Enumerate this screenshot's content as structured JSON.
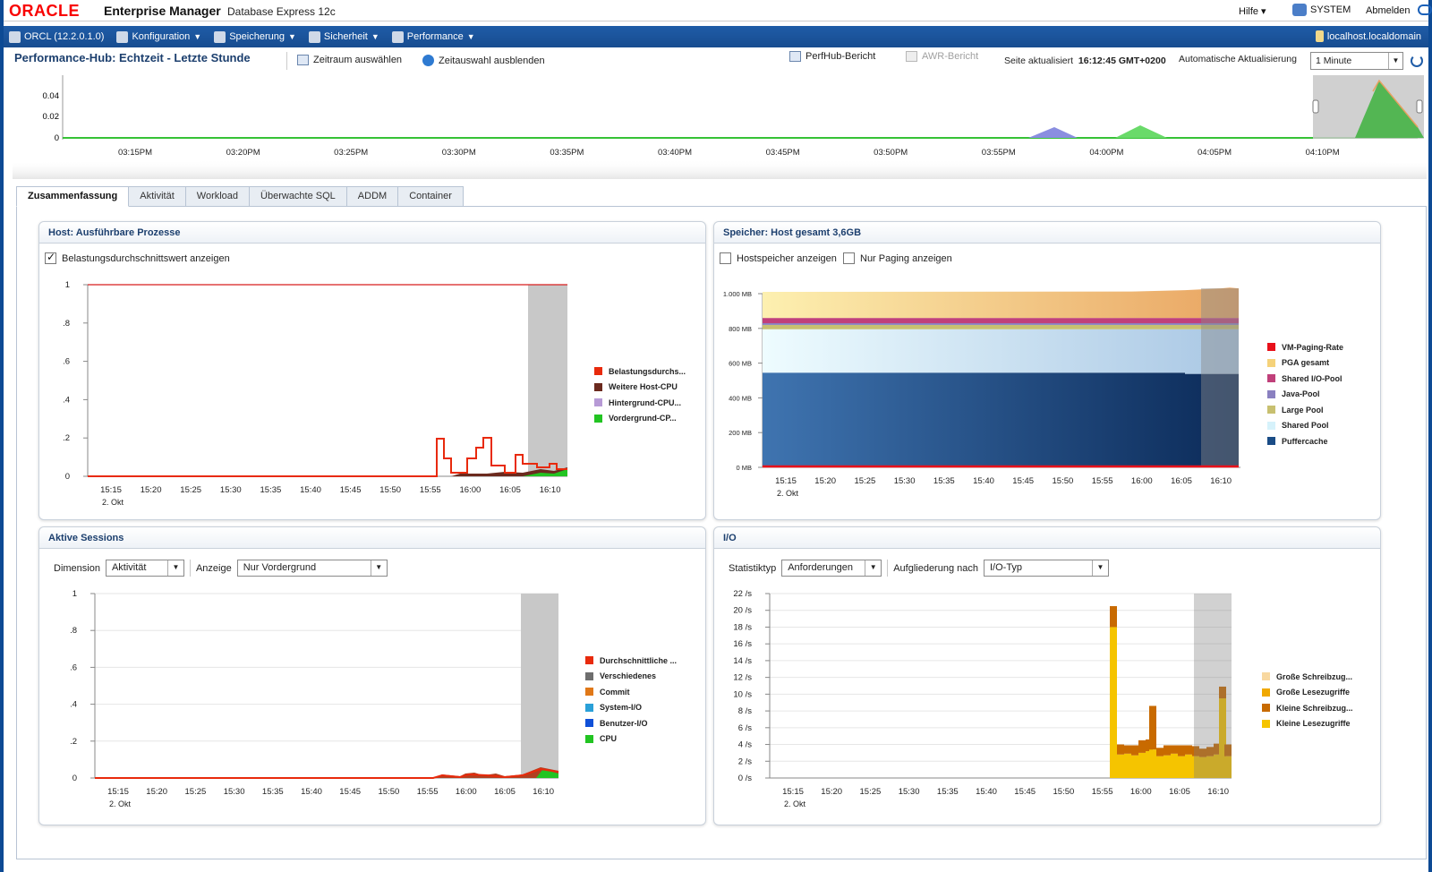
{
  "header": {
    "logo": "ORACLE",
    "product": "Enterprise Manager",
    "product_sub": "Database Express 12c",
    "help": "Hilfe ▾",
    "user": "SYSTEM",
    "logout": "Abmelden"
  },
  "nav": {
    "db": "ORCL (12.2.0.1.0)",
    "items": [
      "Konfiguration",
      "Speicherung",
      "Sicherheit",
      "Performance"
    ],
    "host": "localhost.localdomain"
  },
  "title_row": {
    "title": "Performance-Hub: Echtzeit - Letzte Stunde",
    "select_range": "Zeitraum auswählen",
    "hide_selection": "Zeitauswahl ausblenden",
    "perfhub_report": "PerfHub-Bericht",
    "awr_report": "AWR-Bericht",
    "updated_label": "Seite aktualisiert",
    "updated_time": "16:12:45 GMT+0200",
    "autorefresh_label": "Automatische Aktualisierung",
    "autorefresh_value": "1 Minute"
  },
  "overview": {
    "y_ticks": [
      "0.04",
      "0.02",
      "0"
    ],
    "x_ticks": [
      "03:15PM",
      "03:20PM",
      "03:25PM",
      "03:30PM",
      "03:35PM",
      "03:40PM",
      "03:45PM",
      "03:50PM",
      "03:55PM",
      "04:00PM",
      "04:05PM",
      "04:10PM"
    ]
  },
  "tabs": [
    "Zusammenfassung",
    "Aktivität",
    "Workload",
    "Überwachte SQL",
    "ADDM",
    "Container"
  ],
  "panels": {
    "host": {
      "title": "Host: Ausführbare Prozesse",
      "checkbox_label": "Belastungsdurchschnittswert anzeigen"
    },
    "memory": {
      "title": "Speicher: Host gesamt 3,6GB",
      "checkbox1": "Hostspeicher anzeigen",
      "checkbox2": "Nur Paging anzeigen"
    },
    "sessions": {
      "title": "Aktive Sessions",
      "dimension_label": "Dimension",
      "dimension_value": "Aktivität",
      "display_label": "Anzeige",
      "display_value": "Nur Vordergrund"
    },
    "io": {
      "title": "I/O",
      "stat_label": "Statistiktyp",
      "stat_value": "Anforderungen",
      "breakdown_label": "Aufgliederung nach",
      "breakdown_value": "I/O-Typ"
    }
  },
  "colors": {
    "load": "#e82a0c",
    "other_cpu": "#6b2a1e",
    "bg_cpu": "#b79ad6",
    "fg_cpu": "#22c422",
    "buffer_cache": "#1a4c86",
    "shared_pool": "#d6f2fb",
    "pga": "#f5d27a",
    "small_reads": "#f5c400",
    "small_writes": "#c86a00"
  },
  "chart_data": [
    {
      "type": "line",
      "title": "Host: Ausführbare Prozesse",
      "x": [
        "15:15",
        "15:20",
        "15:25",
        "15:30",
        "15:35",
        "15:40",
        "15:45",
        "15:50",
        "15:55",
        "16:00",
        "16:05",
        "16:10"
      ],
      "x_sublabel": "2. Okt",
      "y_ticks": [
        "1",
        ".8",
        ".6",
        ".4",
        ".2",
        "0"
      ],
      "ylim": [
        0,
        1
      ],
      "series": [
        {
          "name": "Belastungsdurchs...",
          "color": "#e82a0c",
          "values": [
            0,
            0,
            0,
            0,
            0,
            0,
            0,
            0,
            0.2,
            0.2,
            0.1,
            0.05
          ]
        },
        {
          "name": "Weitere Host-CPU",
          "color": "#6b2a1e",
          "values": [
            0,
            0,
            0,
            0,
            0,
            0,
            0,
            0,
            0.02,
            0.03,
            0.02,
            0.04
          ]
        },
        {
          "name": "Hintergrund-CPU...",
          "color": "#b79ad6",
          "values": [
            0,
            0,
            0,
            0,
            0,
            0,
            0,
            0,
            0.01,
            0.01,
            0.01,
            0.02
          ]
        },
        {
          "name": "Vordergrund-CP...",
          "color": "#22c422",
          "values": [
            0,
            0,
            0,
            0,
            0,
            0,
            0,
            0,
            0.01,
            0.01,
            0.01,
            0.03
          ]
        }
      ],
      "cpu_count_line": 1
    },
    {
      "type": "area",
      "title": "Speicher: Host gesamt 3,6GB",
      "x": [
        "15:15",
        "15:20",
        "15:25",
        "15:30",
        "15:35",
        "15:40",
        "15:45",
        "15:50",
        "15:55",
        "16:00",
        "16:05",
        "16:10"
      ],
      "x_sublabel": "2. Okt",
      "y_ticks": [
        "1.000 MB",
        "800 MB",
        "600 MB",
        "400 MB",
        "200 MB",
        "0 MB"
      ],
      "ylim": [
        0,
        1000
      ],
      "series": [
        {
          "name": "VM-Paging-Rate",
          "color": "#e8101a",
          "values": [
            5,
            5,
            5,
            5,
            5,
            5,
            5,
            5,
            5,
            5,
            5,
            5
          ]
        },
        {
          "name": "PGA gesamt",
          "color": "#f5d27a",
          "values": [
            150,
            150,
            150,
            150,
            150,
            150,
            150,
            150,
            155,
            160,
            160,
            165
          ]
        },
        {
          "name": "Shared I/O-Pool",
          "color": "#c0407a",
          "values": [
            40,
            40,
            40,
            40,
            40,
            40,
            40,
            40,
            40,
            40,
            40,
            40
          ]
        },
        {
          "name": "Java-Pool",
          "color": "#8a80c0",
          "values": [
            10,
            10,
            10,
            10,
            10,
            10,
            10,
            10,
            10,
            10,
            10,
            10
          ]
        },
        {
          "name": "Large Pool",
          "color": "#c8c070",
          "values": [
            25,
            25,
            25,
            25,
            25,
            25,
            25,
            25,
            25,
            25,
            25,
            25
          ]
        },
        {
          "name": "Shared Pool",
          "color": "#d6f2fb",
          "values": [
            250,
            250,
            250,
            250,
            250,
            250,
            250,
            250,
            250,
            250,
            260,
            260
          ]
        },
        {
          "name": "Puffercache",
          "color": "#1a4c86",
          "values": [
            545,
            545,
            545,
            545,
            545,
            545,
            545,
            545,
            545,
            545,
            535,
            535
          ]
        }
      ]
    },
    {
      "type": "area",
      "title": "Aktive Sessions",
      "x": [
        "15:15",
        "15:20",
        "15:25",
        "15:30",
        "15:35",
        "15:40",
        "15:45",
        "15:50",
        "15:55",
        "16:00",
        "16:05",
        "16:10"
      ],
      "x_sublabel": "2. Okt",
      "y_ticks": [
        "1",
        ".8",
        ".6",
        ".4",
        ".2",
        "0"
      ],
      "ylim": [
        0,
        1
      ],
      "series": [
        {
          "name": "Durchschnittliche ...",
          "color": "#e82a0c",
          "values": [
            0,
            0,
            0,
            0,
            0,
            0,
            0,
            0,
            0.01,
            0.02,
            0.02,
            0.05
          ]
        },
        {
          "name": "Verschiedenes",
          "color": "#6e6e6e",
          "values": [
            0,
            0,
            0,
            0,
            0,
            0,
            0,
            0,
            0,
            0,
            0,
            0
          ]
        },
        {
          "name": "Commit",
          "color": "#e07818",
          "values": [
            0,
            0,
            0,
            0,
            0,
            0,
            0,
            0,
            0,
            0,
            0,
            0
          ]
        },
        {
          "name": "System-I/O",
          "color": "#2aa0d8",
          "values": [
            0,
            0,
            0,
            0,
            0,
            0,
            0,
            0,
            0,
            0,
            0,
            0
          ]
        },
        {
          "name": "Benutzer-I/O",
          "color": "#1050d8",
          "values": [
            0,
            0,
            0,
            0,
            0,
            0,
            0,
            0,
            0,
            0,
            0,
            0
          ]
        },
        {
          "name": "CPU",
          "color": "#22c422",
          "values": [
            0,
            0,
            0,
            0,
            0,
            0,
            0,
            0,
            0,
            0.01,
            0.01,
            0.04
          ]
        }
      ]
    },
    {
      "type": "bar",
      "title": "I/O",
      "x": [
        "15:15",
        "15:20",
        "15:25",
        "15:30",
        "15:35",
        "15:40",
        "15:45",
        "15:50",
        "15:55",
        "16:00",
        "16:05",
        "16:10"
      ],
      "x_sublabel": "2. Okt",
      "y_ticks": [
        "22 /s",
        "20 /s",
        "18 /s",
        "16 /s",
        "14 /s",
        "12 /s",
        "10 /s",
        "8 /s",
        "6 /s",
        "4 /s",
        "2 /s",
        "0 /s"
      ],
      "ylim": [
        0,
        22
      ],
      "series": [
        {
          "name": "Große Schreibzug...",
          "color": "#f8d8a0",
          "values": [
            0,
            0,
            0,
            0,
            0,
            0,
            0,
            0,
            0,
            0,
            0,
            0
          ]
        },
        {
          "name": "Große Lesezugriffe",
          "color": "#f0a800",
          "values": [
            0,
            0,
            0,
            0,
            0,
            0,
            0,
            0,
            0,
            0,
            0,
            0
          ]
        },
        {
          "name": "Kleine Schreibzug...",
          "color": "#c86a00",
          "values": [
            0,
            0,
            0,
            0,
            0,
            0,
            0,
            0,
            2.5,
            1.5,
            1,
            1.5
          ]
        },
        {
          "name": "Kleine Lesezugriffe",
          "color": "#f5c400",
          "values": [
            0,
            0,
            0,
            0,
            0,
            0,
            0,
            0,
            18,
            2.8,
            2.5,
            3
          ]
        }
      ]
    }
  ]
}
